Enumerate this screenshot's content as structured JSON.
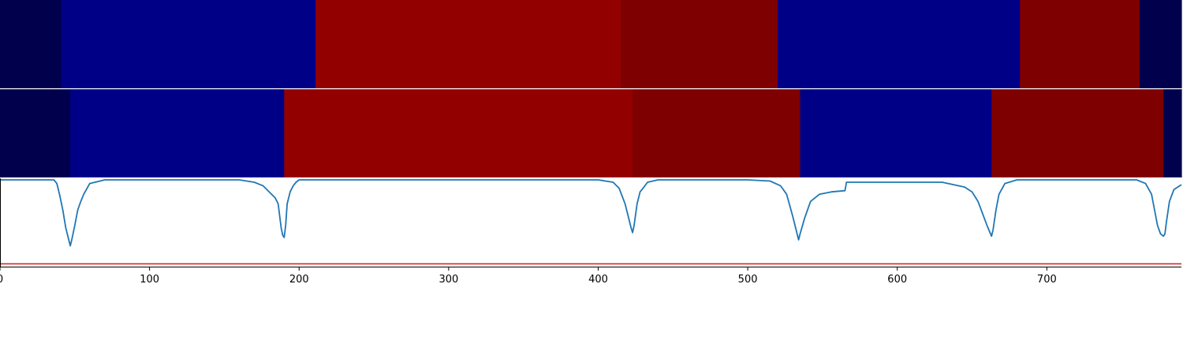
{
  "chart_data": {
    "type": "heatmap",
    "xlim": [
      0,
      790
    ],
    "x_ticks": [
      {
        "value": 0,
        "label": "0"
      },
      {
        "value": 100,
        "label": "100"
      },
      {
        "value": 200,
        "label": "200"
      },
      {
        "value": 300,
        "label": "300"
      },
      {
        "value": 400,
        "label": "400"
      },
      {
        "value": 500,
        "label": "500"
      },
      {
        "value": 600,
        "label": "600"
      },
      {
        "value": 700,
        "label": "700"
      }
    ],
    "colors": {
      "navy_dark": "#00004d",
      "blue": "#000087",
      "red": "#920000",
      "dark_red": "#7f0000",
      "line": "#1f77b4",
      "threshold": "#d62728"
    },
    "rows": [
      {
        "segments": [
          {
            "start": 0,
            "end": 41,
            "color": "navy_dark"
          },
          {
            "start": 41,
            "end": 211,
            "color": "blue"
          },
          {
            "start": 211,
            "end": 415,
            "color": "red"
          },
          {
            "start": 415,
            "end": 520,
            "color": "dark_red"
          },
          {
            "start": 520,
            "end": 682,
            "color": "blue"
          },
          {
            "start": 682,
            "end": 762,
            "color": "dark_red"
          },
          {
            "start": 762,
            "end": 790,
            "color": "navy_dark"
          }
        ]
      },
      {
        "segments": [
          {
            "start": 0,
            "end": 47,
            "color": "navy_dark"
          },
          {
            "start": 47,
            "end": 190,
            "color": "blue"
          },
          {
            "start": 190,
            "end": 423,
            "color": "red"
          },
          {
            "start": 423,
            "end": 535,
            "color": "dark_red"
          },
          {
            "start": 535,
            "end": 663,
            "color": "blue"
          },
          {
            "start": 663,
            "end": 778,
            "color": "dark_red"
          },
          {
            "start": 778,
            "end": 790,
            "color": "navy_dark"
          }
        ]
      }
    ],
    "line_panel": {
      "ylim": [
        0,
        1
      ],
      "threshold": 0.3,
      "series": {
        "x": [
          0,
          36,
          38,
          40,
          42,
          44,
          46,
          47,
          48,
          50,
          52,
          54,
          56,
          60,
          70,
          90,
          130,
          160,
          170,
          176,
          180,
          184,
          186,
          188,
          189,
          190,
          191,
          192,
          194,
          196,
          198,
          200,
          206,
          220,
          300,
          380,
          400,
          410,
          414,
          418,
          420,
          422,
          423,
          424,
          426,
          428,
          430,
          433,
          440,
          480,
          500,
          515,
          522,
          526,
          530,
          533,
          534,
          535,
          538,
          542,
          548,
          556,
          565,
          566,
          580,
          630,
          645,
          650,
          654,
          657,
          660,
          662,
          663,
          664,
          666,
          668,
          672,
          680,
          700,
          760,
          766,
          770,
          772,
          774,
          776,
          778,
          779,
          780,
          782,
          785,
          790
        ],
        "y": [
          1.0,
          1.0,
          0.97,
          0.87,
          0.75,
          0.6,
          0.5,
          0.45,
          0.5,
          0.62,
          0.75,
          0.82,
          0.88,
          0.97,
          1.0,
          1.0,
          1.0,
          1.0,
          0.98,
          0.95,
          0.9,
          0.85,
          0.8,
          0.6,
          0.54,
          0.52,
          0.62,
          0.8,
          0.9,
          0.95,
          0.98,
          1.0,
          1.0,
          1.0,
          1.0,
          1.0,
          1.0,
          0.98,
          0.93,
          0.8,
          0.7,
          0.6,
          0.56,
          0.62,
          0.8,
          0.9,
          0.93,
          0.98,
          1.0,
          1.0,
          1.0,
          0.99,
          0.95,
          0.88,
          0.7,
          0.55,
          0.5,
          0.55,
          0.68,
          0.82,
          0.88,
          0.9,
          0.91,
          0.98,
          0.98,
          0.98,
          0.94,
          0.9,
          0.82,
          0.72,
          0.62,
          0.56,
          0.53,
          0.58,
          0.75,
          0.88,
          0.97,
          1.0,
          1.0,
          1.0,
          0.97,
          0.88,
          0.75,
          0.62,
          0.55,
          0.53,
          0.55,
          0.65,
          0.82,
          0.92,
          0.96
        ]
      }
    }
  }
}
